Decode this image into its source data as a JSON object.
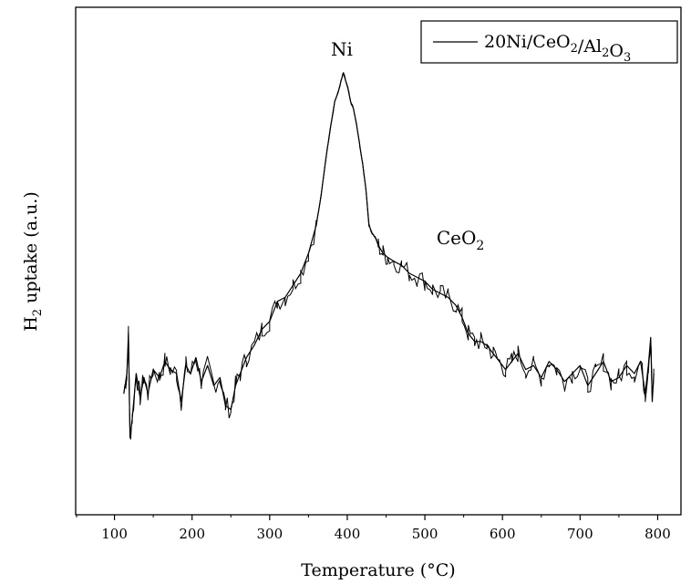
{
  "chart_data": {
    "type": "line",
    "xlabel": "Temperature (°C)",
    "ylabel": {
      "main": "H",
      "sub": "2",
      "rest": " uptake (a.u.)"
    },
    "xlim": [
      50,
      830
    ],
    "ylim": [
      0,
      1
    ],
    "xticks": [
      "100",
      "200",
      "300",
      "400",
      "500",
      "600",
      "700",
      "800"
    ],
    "grid": false,
    "legend_position": "top-right",
    "series": [
      {
        "name": "20Ni/CeO2/Al2O3",
        "name_parts": [
          {
            "t": "20Ni/CeO",
            "sub": false
          },
          {
            "t": "2",
            "sub": true
          },
          {
            "t": "/Al",
            "sub": false
          },
          {
            "t": "2",
            "sub": true
          },
          {
            "t": "O",
            "sub": false
          },
          {
            "t": "3",
            "sub": true
          }
        ],
        "x": [
          112,
          116,
          118,
          120,
          123,
          128,
          133,
          138,
          143,
          150,
          158,
          165,
          172,
          180,
          186,
          192,
          198,
          205,
          212,
          220,
          228,
          236,
          243,
          250,
          256,
          262,
          270,
          280,
          290,
          300,
          310,
          320,
          330,
          340,
          350,
          360,
          366,
          372,
          378,
          384,
          388,
          392,
          395,
          398,
          401,
          404,
          408,
          412,
          416,
          420,
          424,
          428,
          432,
          436,
          440,
          446,
          452,
          460,
          470,
          480,
          490,
          500,
          510,
          520,
          530,
          540,
          548,
          556,
          564,
          572,
          580,
          588,
          596,
          604,
          612,
          620,
          630,
          640,
          650,
          660,
          670,
          680,
          690,
          700,
          710,
          720,
          730,
          740,
          750,
          760,
          770,
          778,
          784,
          788,
          791,
          793,
          795
        ],
        "y": [
          0.2,
          0.25,
          0.35,
          0.09,
          0.14,
          0.25,
          0.19,
          0.24,
          0.2,
          0.26,
          0.24,
          0.28,
          0.26,
          0.25,
          0.18,
          0.27,
          0.25,
          0.29,
          0.23,
          0.27,
          0.22,
          0.24,
          0.17,
          0.16,
          0.22,
          0.25,
          0.29,
          0.32,
          0.36,
          0.38,
          0.43,
          0.44,
          0.47,
          0.5,
          0.55,
          0.62,
          0.69,
          0.78,
          0.86,
          0.93,
          0.95,
          0.98,
          1.0,
          0.98,
          0.96,
          0.93,
          0.91,
          0.87,
          0.82,
          0.77,
          0.71,
          0.62,
          0.6,
          0.59,
          0.57,
          0.55,
          0.54,
          0.53,
          0.52,
          0.5,
          0.49,
          0.48,
          0.46,
          0.45,
          0.44,
          0.42,
          0.39,
          0.35,
          0.33,
          0.33,
          0.32,
          0.3,
          0.28,
          0.26,
          0.28,
          0.3,
          0.26,
          0.27,
          0.24,
          0.28,
          0.26,
          0.23,
          0.25,
          0.27,
          0.22,
          0.25,
          0.28,
          0.23,
          0.24,
          0.27,
          0.25,
          0.28,
          0.2,
          0.27,
          0.34,
          0.18,
          0.25
        ]
      }
    ],
    "annotations": [
      {
        "text": "Ni",
        "x": 393,
        "y": 1.03
      },
      {
        "text": "CeO",
        "sub": "2",
        "x": 515,
        "y": 0.6
      }
    ]
  }
}
